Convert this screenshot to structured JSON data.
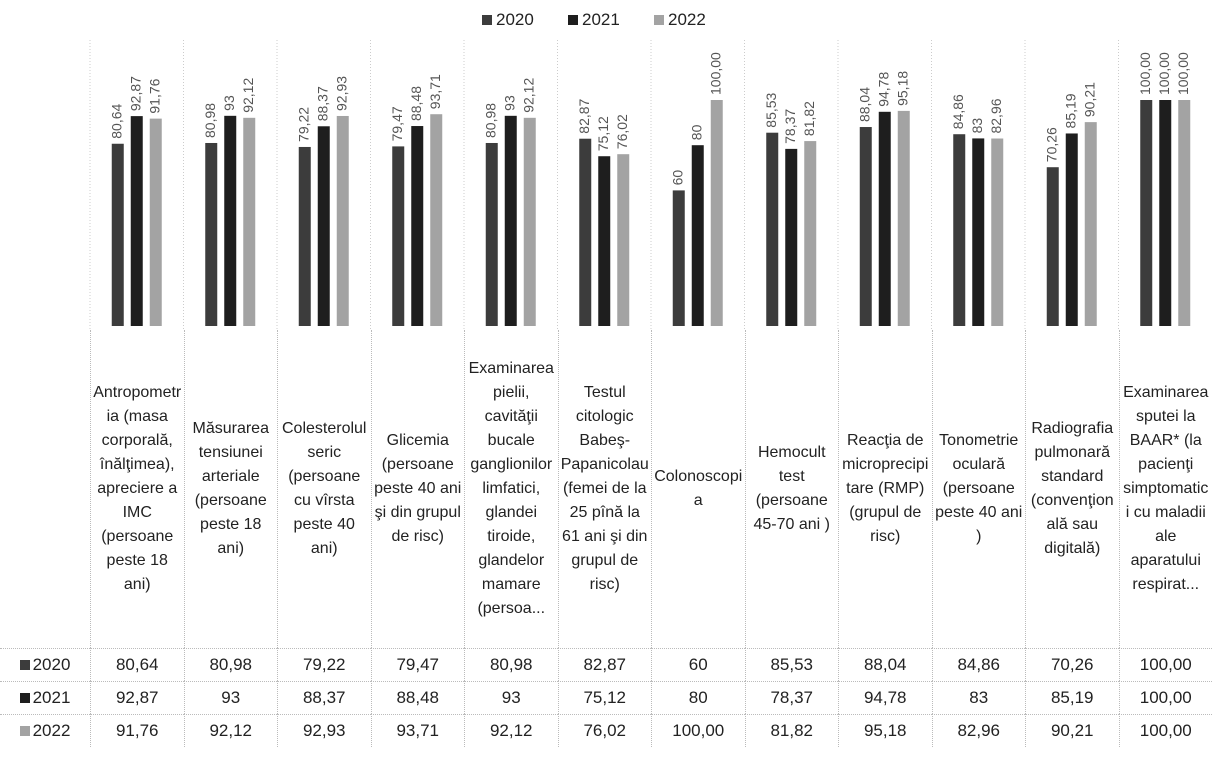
{
  "chart_data": {
    "type": "bar",
    "categories": [
      "Antropometria (masa corporală, înălţimea), apreciere a IMC (persoane peste 18 ani)",
      "Măsurarea tensiunei arteriale (persoane peste 18 ani)",
      "Colesterolul seric (persoane cu vîrsta peste 40 ani)",
      "Glicemia (persoane peste 40 ani şi din grupul de risc)",
      "Examinarea pielii, cavităţii bucale ganglionilor limfatici, glandei tiroide, glandelor mamare (persoa...",
      "Testul citologic Babeş-Papanicolau (femei de la 25 pînă la 61 ani şi din grupul de risc)",
      "Colonoscopia",
      "Hemocult test (persoane 45-70 ani )",
      "Reacţia de microprecipitare (RMP) (grupul de risc)",
      "Tonometrie oculară (persoane peste 40 ani )",
      "Radiografia pulmonară standard (convenţională sau digitală)",
      "Examinarea sputei la BAAR* (la pacienţi simptomatici cu maladii ale aparatului respirat..."
    ],
    "series": [
      {
        "name": "2020",
        "color": "#3c3c3c",
        "values": [
          80.64,
          80.98,
          79.22,
          79.47,
          80.98,
          82.87,
          60,
          85.53,
          88.04,
          84.86,
          70.26,
          100
        ],
        "value_labels": [
          "80,64",
          "80,98",
          "79,22",
          "79,47",
          "80,98",
          "82,87",
          "60",
          "85,53",
          "88,04",
          "84,86",
          "70,26",
          "100,00"
        ]
      },
      {
        "name": "2021",
        "color": "#1e1e1e",
        "values": [
          92.87,
          93,
          88.37,
          88.48,
          93,
          75.12,
          80,
          78.37,
          94.78,
          83,
          85.19,
          100
        ],
        "value_labels": [
          "92,87",
          "93",
          "88,37",
          "88,48",
          "93",
          "75,12",
          "80",
          "78,37",
          "94,78",
          "83",
          "85,19",
          "100,00"
        ]
      },
      {
        "name": "2022",
        "color": "#a3a3a3",
        "values": [
          91.76,
          92.12,
          92.93,
          93.71,
          92.12,
          76.02,
          100,
          81.82,
          95.18,
          82.96,
          90.21,
          100
        ],
        "value_labels": [
          "91,76",
          "92,12",
          "92,93",
          "93,71",
          "92,12",
          "76,02",
          "100,00",
          "81,82",
          "95,18",
          "82,96",
          "90,21",
          "100,00"
        ]
      }
    ],
    "ylim": [
      0,
      100
    ],
    "legend": "top",
    "data_table": true
  }
}
